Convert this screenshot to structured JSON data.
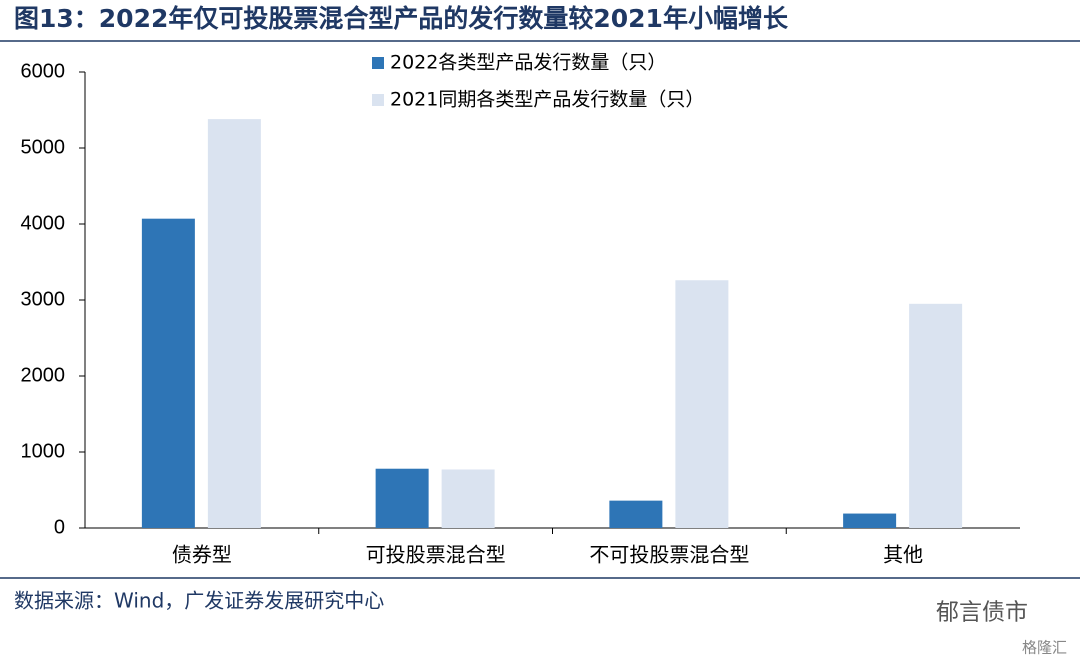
{
  "chart_data": {
    "type": "bar",
    "title": "图13：2022年仅可投股票混合型产品的发行数量较2021年小幅增长",
    "categories": [
      "债券型",
      "可投股票混合型",
      "不可投股票混合型",
      "其他"
    ],
    "series": [
      {
        "name": "2022各类型产品发行数量（只）",
        "color": "#2e75b6",
        "values": [
          4070,
          780,
          360,
          190
        ]
      },
      {
        "name": "2021同期各类型产品发行数量（只）",
        "color": "#dae3f0",
        "values": [
          5380,
          770,
          3260,
          2950
        ]
      }
    ],
    "ylim": [
      0,
      6000
    ],
    "yticks": [
      0,
      1000,
      2000,
      3000,
      4000,
      5000,
      6000
    ],
    "source": "数据来源：Wind，广发证券发展研究中心",
    "watermark": "郁言债市",
    "watermark2": "格隆汇"
  }
}
